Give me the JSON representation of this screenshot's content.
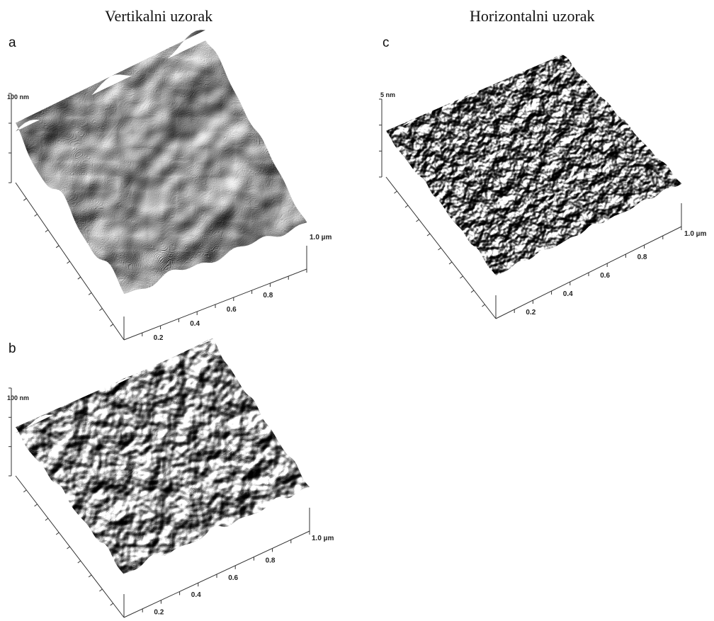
{
  "columns": {
    "vertical": "Vertikalni uzorak",
    "horizontal": "Horizontalni uzorak"
  },
  "panels": [
    {
      "id": "a",
      "letter": "a",
      "z_label": "100 nm",
      "axis_ticks": [
        "0.2",
        "0.4",
        "0.6",
        "0.8"
      ],
      "axis_end_label": "1.0 µm",
      "surface": "large grains, deep valleys"
    },
    {
      "id": "b",
      "letter": "b",
      "z_label": "100 nm",
      "axis_ticks": [
        "0.2",
        "0.4",
        "0.6",
        "0.8"
      ],
      "axis_end_label": "1.0 µm",
      "surface": "medium rounded grains"
    },
    {
      "id": "c",
      "letter": "c",
      "z_label": "5 nm",
      "axis_ticks": [
        "0.2",
        "0.4",
        "0.6",
        "0.8"
      ],
      "axis_end_label": "1.0 µm",
      "surface": "fine grains"
    }
  ]
}
